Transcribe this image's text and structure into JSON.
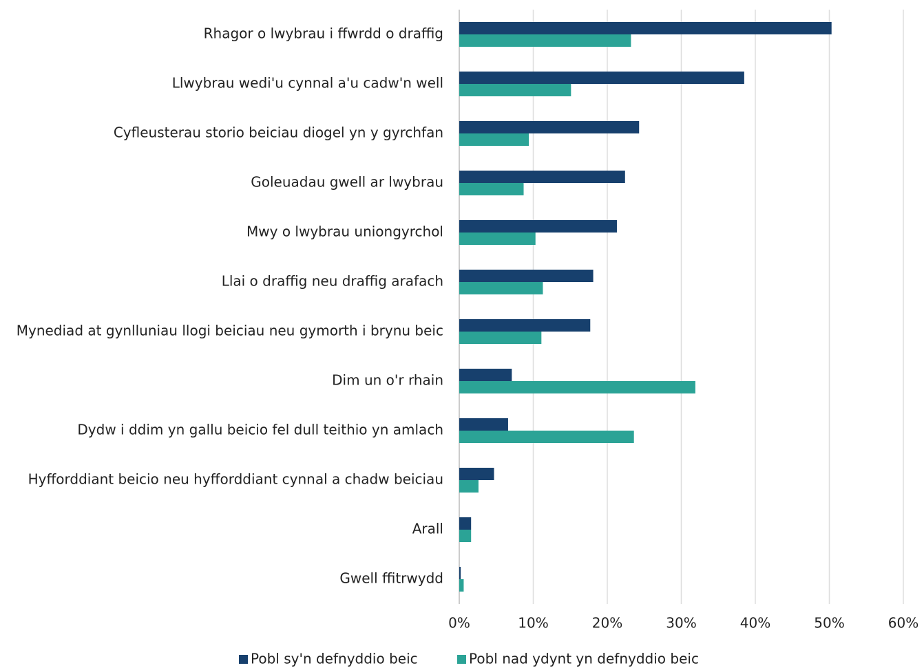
{
  "chart_data": {
    "type": "barh",
    "categories": [
      "Rhagor o lwybrau i ffwrdd o draffig",
      "Llwybrau wedi'u cynnal a'u cadw'n well",
      "Cyfleusterau storio beiciau diogel yn y gyrchfan",
      "Goleuadau gwell ar lwybrau",
      "Mwy o lwybrau uniongyrchol",
      "Llai o draffig neu draffig arafach",
      "Mynediad at gynlluniau llogi beiciau neu gymorth i brynu beic",
      "Dim un o'r rhain",
      "Dydw i ddim yn gallu beicio fel dull teithio yn amlach",
      "Hyfforddiant beicio neu hyfforddiant cynnal a chadw beiciau",
      "Arall",
      "Gwell ffitrwydd"
    ],
    "series": [
      {
        "name": "Pobl sy'n defnyddio beic",
        "color": "#17406d",
        "values": [
          50.3,
          38.5,
          24.3,
          22.4,
          21.3,
          18.1,
          17.7,
          7.1,
          6.6,
          4.7,
          1.6,
          0.2
        ]
      },
      {
        "name": "Pobl nad ydynt yn defnyddio beic",
        "color": "#2ba396",
        "values": [
          23.2,
          15.1,
          9.4,
          8.7,
          10.3,
          11.3,
          11.1,
          31.9,
          23.6,
          2.6,
          1.6,
          0.6
        ]
      }
    ],
    "xlim": [
      0,
      60
    ],
    "xticks": [
      {
        "value": 0,
        "label": "0%"
      },
      {
        "value": 10,
        "label": "10%"
      },
      {
        "value": 20,
        "label": "20%"
      },
      {
        "value": 30,
        "label": "30%"
      },
      {
        "value": 40,
        "label": "40%"
      },
      {
        "value": 50,
        "label": "50%"
      },
      {
        "value": 60,
        "label": "60%"
      }
    ],
    "grid": true,
    "legend": "bottom"
  }
}
